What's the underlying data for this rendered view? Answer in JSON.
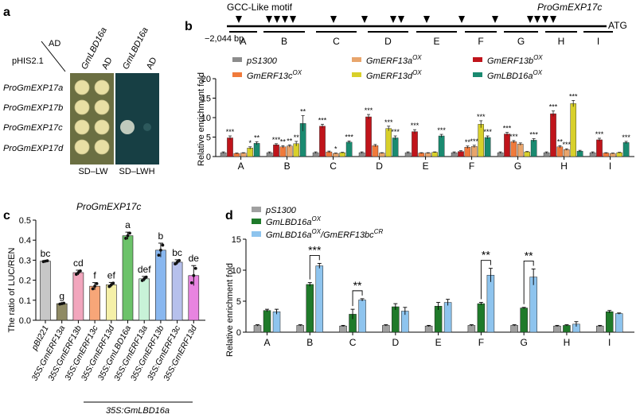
{
  "panel_a": {
    "label": "a",
    "ad_label": "AD",
    "phis_label": "pHIS2.1",
    "col_headers": [
      "GmLBD16a",
      "AD",
      "GmLBD16a",
      "AD"
    ],
    "row_labels": [
      "ProGmEXP17a",
      "ProGmEXP17b",
      "ProGmEXP17c",
      "ProGmEXP17d"
    ],
    "media": [
      "SD–LW",
      "SD–LWH"
    ],
    "colors": {
      "lw_plate": "#6b6f42",
      "lwh_plate": "#173f44",
      "colony": "#e8dfa4"
    }
  },
  "panel_b": {
    "label": "b",
    "motif_label": "GCC-Like motif",
    "promoter_label": "ProGmEXP17c",
    "start_label": "−2,044 bp",
    "end_label": "ATG",
    "regions": [
      "A",
      "B",
      "C",
      "D",
      "E",
      "F",
      "G",
      "H",
      "I"
    ],
    "chart_data": {
      "type": "bar",
      "categories": [
        "A",
        "B",
        "C",
        "D",
        "E",
        "F",
        "G",
        "H",
        "I"
      ],
      "ylabel": "Relative enrichment fold",
      "ylim": [
        0,
        20
      ],
      "yticks": [
        0,
        5,
        10,
        15,
        20
      ],
      "series": [
        {
          "name": "pS1300",
          "color": "#8c8c8c",
          "values": [
            1.0,
            1.0,
            1.0,
            1.0,
            1.0,
            1.0,
            1.0,
            1.0,
            1.0
          ]
        },
        {
          "name": "GmERF13b",
          "sup": "OX",
          "color": "#c0141b",
          "values": [
            4.8,
            3.0,
            7.8,
            10.2,
            6.4,
            1.3,
            5.8,
            11.0,
            4.3
          ]
        },
        {
          "name": "GmERF13c",
          "sup": "OX",
          "color": "#f07a3b",
          "values": [
            0.8,
            2.5,
            1.2,
            2.8,
            0.9,
            2.4,
            3.8,
            2.5,
            0.9
          ]
        },
        {
          "name": "GmERF13a",
          "sup": "OX",
          "color": "#e8a56c",
          "values": [
            0.9,
            2.7,
            0.8,
            0.9,
            0.9,
            2.6,
            3.2,
            1.8,
            0.8
          ]
        },
        {
          "name": "GmERF13d",
          "sup": "OX",
          "color": "#d8d02a",
          "values": [
            2.2,
            3.3,
            1.0,
            7.2,
            1.1,
            8.3,
            1.2,
            13.6,
            1.0
          ]
        },
        {
          "name": "GmLBD16a",
          "sup": "OX",
          "color": "#1a8a70",
          "values": [
            3.4,
            8.5,
            3.7,
            4.8,
            5.3,
            4.9,
            4.2,
            1.4,
            3.6
          ]
        }
      ],
      "errors": [
        [
          0.2,
          0.2,
          0.2,
          0.2,
          0.2,
          0.2,
          0.2,
          0.2,
          0.2
        ],
        [
          0.5,
          0.3,
          0.5,
          0.6,
          0.5,
          0.2,
          0.4,
          0.7,
          0.4
        ],
        [
          0.1,
          0.3,
          0.2,
          0.3,
          0.1,
          0.3,
          0.3,
          0.3,
          0.1
        ],
        [
          0.1,
          0.3,
          0.1,
          0.1,
          0.1,
          0.3,
          0.3,
          0.2,
          0.1
        ],
        [
          0.3,
          0.6,
          0.1,
          0.6,
          0.1,
          0.9,
          0.1,
          0.8,
          0.1
        ],
        [
          0.4,
          2.0,
          0.3,
          0.5,
          0.4,
          0.4,
          0.4,
          0.2,
          0.3
        ]
      ],
      "significance": [
        [
          "",
          "",
          "",
          "",
          "",
          "",
          "",
          "",
          ""
        ],
        [
          "***",
          "***",
          "***",
          "***",
          "***",
          "",
          "***",
          "***",
          "***"
        ],
        [
          "",
          "**",
          "",
          "",
          "",
          "**",
          "***",
          "**",
          ""
        ],
        [
          "",
          "**",
          "*",
          "",
          "",
          "***",
          "",
          "***",
          ""
        ],
        [
          "*",
          "**",
          "",
          "***",
          "",
          "***",
          "",
          "***",
          ""
        ],
        [
          "**",
          "**",
          "***",
          "***",
          "***",
          "***",
          "***",
          "",
          "***"
        ]
      ]
    }
  },
  "panel_c": {
    "label": "c",
    "title": "ProGmEXP17c",
    "group_label": "35S:GmLBD16a",
    "chart_data": {
      "type": "bar",
      "ylabel": "The ratio of LUC/REN",
      "ylim": [
        0,
        0.5
      ],
      "yticks": [
        0.0,
        0.1,
        0.2,
        0.3,
        0.4,
        0.5
      ],
      "categories": [
        "pBI221",
        "35S:GmERF13a",
        "35S:GmERF13b",
        "35S:GmERF13c",
        "35S:GmERF13d",
        "35S:GmLBD16a",
        "35S:GmERF13a",
        "35S:GmERF13b",
        "35S:GmERF13c",
        "35S:GmERF13d"
      ],
      "values": [
        0.295,
        0.083,
        0.238,
        0.17,
        0.177,
        0.422,
        0.207,
        0.35,
        0.29,
        0.223
      ],
      "errors": [
        0.003,
        0.003,
        0.012,
        0.018,
        0.012,
        0.018,
        0.012,
        0.035,
        0.012,
        0.05
      ],
      "letters": [
        "bc",
        "g",
        "cd",
        "f",
        "ef",
        "a",
        "def",
        "b",
        "bc",
        "de"
      ],
      "colors": [
        "#c7c7c7",
        "#8f8a64",
        "#f2a6bd",
        "#f7a678",
        "#f5f0a8",
        "#6cc26a",
        "#c8f2d8",
        "#89b7ef",
        "#b6c0ec",
        "#e884e0"
      ]
    }
  },
  "panel_d": {
    "label": "d",
    "chart_data": {
      "type": "bar",
      "categories": [
        "A",
        "B",
        "C",
        "D",
        "E",
        "F",
        "G",
        "H",
        "I"
      ],
      "ylabel": "Relative enrichment fold",
      "ylim": [
        0,
        15
      ],
      "yticks": [
        0,
        5,
        10,
        15
      ],
      "series": [
        {
          "name": "pS1300",
          "color": "#a0a0a0",
          "values": [
            1.1,
            1.1,
            1.0,
            1.1,
            1.0,
            1.1,
            1.1,
            1.0,
            1.0
          ]
        },
        {
          "name": "GmLBD16a",
          "sup": "OX",
          "color": "#1f7a2a",
          "values": [
            3.5,
            7.7,
            2.9,
            4.1,
            4.2,
            4.6,
            3.9,
            1.1,
            3.3
          ]
        },
        {
          "name": "GmLBD16a",
          "sup": "OX",
          "suffix": "/GmERF13bc",
          "suffix_sup": "CR",
          "color": "#8ec4ee",
          "values": [
            3.3,
            10.7,
            5.2,
            3.4,
            4.8,
            9.2,
            8.9,
            1.3,
            3.0
          ]
        }
      ],
      "errors": [
        [
          0.1,
          0.1,
          0.1,
          0.1,
          0.1,
          0.1,
          0.1,
          0.1,
          0.1
        ],
        [
          0.2,
          0.3,
          0.8,
          0.5,
          0.6,
          0.2,
          0.1,
          0.1,
          0.2
        ],
        [
          0.4,
          0.4,
          0.2,
          0.6,
          0.5,
          1.1,
          1.3,
          0.4,
          0.1
        ]
      ],
      "significance": [
        {
          "category": "B",
          "label": "***"
        },
        {
          "category": "C",
          "label": "**"
        },
        {
          "category": "F",
          "label": "**"
        },
        {
          "category": "G",
          "label": "**"
        }
      ]
    }
  }
}
